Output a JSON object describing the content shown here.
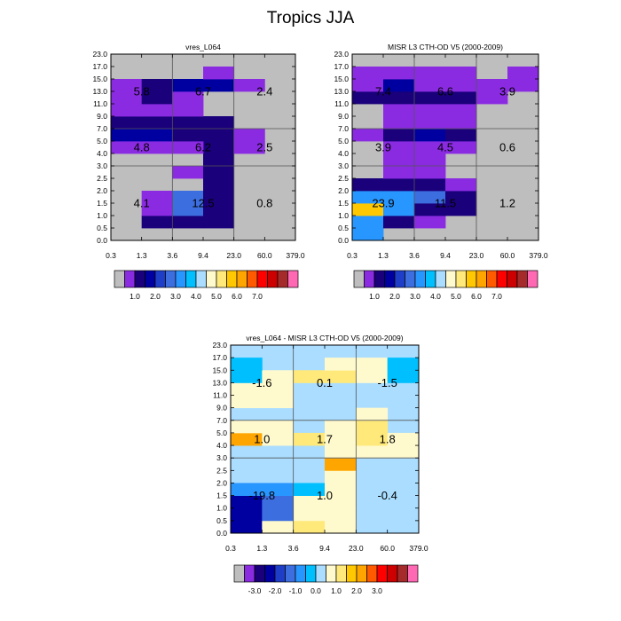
{
  "title": "Tropics JJA",
  "colors": {
    "palette_main": [
      "#bebebe",
      "#8a2be2",
      "#1a007a",
      "#0000a0",
      "#1e3ec8",
      "#3c6ee0",
      "#2896ff",
      "#00bfff",
      "#aaddff",
      "#fffacd",
      "#ffe97a",
      "#ffc800",
      "#ffa500",
      "#ff5a00",
      "#ff0000",
      "#cc0000",
      "#a52a2a",
      "#ff69b4"
    ],
    "palette_diff": [
      "#bebebe",
      "#8a2be2",
      "#1a007a",
      "#0000a0",
      "#1e3ec8",
      "#3c6ee0",
      "#2896ff",
      "#00bfff",
      "#aaddff",
      "#fffacd",
      "#ffe97a",
      "#ffc800",
      "#ffa500",
      "#ff5a00",
      "#ff0000",
      "#cc0000",
      "#a52a2a",
      "#ff69b4"
    ],
    "grey": "#bebebe",
    "violet": "#8a2be2",
    "navy": "#1a007a",
    "darkblue": "#0000a0",
    "medblue": "#1e3ec8",
    "royal": "#3c6ee0",
    "dodger": "#2896ff",
    "sky": "#00bfff",
    "lightblue": "#aaddff",
    "cream": "#fffacd",
    "yellow": "#ffe97a",
    "gold": "#ffc800",
    "orange": "#ffa500"
  },
  "chart_data": [
    {
      "type": "heatmap",
      "title": "vres_L064",
      "x_tick_labels": [
        "0.3",
        "1.3",
        "3.6",
        "9.4",
        "23.0",
        "60.0",
        "379.0"
      ],
      "y_tick_labels": [
        "0.0",
        "0.5",
        "1.0",
        "1.5",
        "2.0",
        "2.5",
        "3.0",
        "4.0",
        "5.0",
        "7.0",
        "9.0",
        "11.0",
        "13.0",
        "15.0",
        "17.0",
        "23.0"
      ],
      "x_group_boundaries": [
        2,
        4
      ],
      "y_group_boundaries": [
        6,
        9
      ],
      "background": "grey",
      "cells": [
        {
          "x": 1,
          "y": 1,
          "c": "navy"
        },
        {
          "x": 2,
          "y": 1,
          "c": "navy"
        },
        {
          "x": 3,
          "y": 1,
          "c": "navy"
        },
        {
          "x": 1,
          "y": 2,
          "c": "violet"
        },
        {
          "x": 2,
          "y": 2,
          "c": "royal"
        },
        {
          "x": 3,
          "y": 2,
          "c": "navy"
        },
        {
          "x": 1,
          "y": 3,
          "c": "violet"
        },
        {
          "x": 2,
          "y": 3,
          "c": "royal"
        },
        {
          "x": 3,
          "y": 3,
          "c": "navy"
        },
        {
          "x": 3,
          "y": 4,
          "c": "navy"
        },
        {
          "x": 2,
          "y": 5,
          "c": "violet"
        },
        {
          "x": 3,
          "y": 5,
          "c": "navy"
        },
        {
          "x": 3,
          "y": 6,
          "c": "navy"
        },
        {
          "x": 3,
          "y": 7,
          "c": "navy"
        },
        {
          "x": 0,
          "y": 7,
          "c": "violet"
        },
        {
          "x": 1,
          "y": 7,
          "c": "violet"
        },
        {
          "x": 2,
          "y": 7,
          "c": "violet"
        },
        {
          "x": 4,
          "y": 7,
          "c": "violet"
        },
        {
          "x": 0,
          "y": 8,
          "c": "darkblue"
        },
        {
          "x": 1,
          "y": 8,
          "c": "darkblue"
        },
        {
          "x": 2,
          "y": 8,
          "c": "navy"
        },
        {
          "x": 3,
          "y": 8,
          "c": "navy"
        },
        {
          "x": 4,
          "y": 8,
          "c": "violet"
        },
        {
          "x": 0,
          "y": 9,
          "c": "navy"
        },
        {
          "x": 1,
          "y": 9,
          "c": "navy"
        },
        {
          "x": 2,
          "y": 9,
          "c": "navy"
        },
        {
          "x": 3,
          "y": 9,
          "c": "navy"
        },
        {
          "x": 0,
          "y": 10,
          "c": "violet"
        },
        {
          "x": 1,
          "y": 10,
          "c": "violet"
        },
        {
          "x": 2,
          "y": 10,
          "c": "violet"
        },
        {
          "x": 0,
          "y": 11,
          "c": "violet"
        },
        {
          "x": 1,
          "y": 11,
          "c": "navy"
        },
        {
          "x": 2,
          "y": 11,
          "c": "violet"
        },
        {
          "x": 0,
          "y": 12,
          "c": "violet"
        },
        {
          "x": 1,
          "y": 12,
          "c": "navy"
        },
        {
          "x": 2,
          "y": 12,
          "c": "darkblue"
        },
        {
          "x": 3,
          "y": 12,
          "c": "darkblue"
        },
        {
          "x": 4,
          "y": 12,
          "c": "violet"
        },
        {
          "x": 3,
          "y": 13,
          "c": "violet"
        }
      ],
      "annotations": [
        {
          "gx": 0,
          "gy": 2,
          "text": "5.8"
        },
        {
          "gx": 1,
          "gy": 2,
          "text": "6.7"
        },
        {
          "gx": 2,
          "gy": 2,
          "text": "2.4"
        },
        {
          "gx": 0,
          "gy": 1,
          "text": "4.8"
        },
        {
          "gx": 1,
          "gy": 1,
          "text": "6.2"
        },
        {
          "gx": 2,
          "gy": 1,
          "text": "2.5"
        },
        {
          "gx": 0,
          "gy": 0,
          "text": "4.1"
        },
        {
          "gx": 1,
          "gy": 0,
          "text": "12.5"
        },
        {
          "gx": 2,
          "gy": 0,
          "text": "0.8"
        }
      ],
      "colorbar_labels": [
        "1.0",
        "2.0",
        "3.0",
        "4.0",
        "5.0",
        "6.0",
        "7.0"
      ]
    },
    {
      "type": "heatmap",
      "title": "MISR L3 CTH-OD V5 (2000-2009)",
      "x_tick_labels": [
        "0.3",
        "1.3",
        "3.6",
        "9.4",
        "23.0",
        "60.0",
        "379.0"
      ],
      "y_tick_labels": [
        "0.0",
        "0.5",
        "1.0",
        "1.5",
        "2.0",
        "2.5",
        "3.0",
        "4.0",
        "5.0",
        "7.0",
        "9.0",
        "11.0",
        "13.0",
        "15.0",
        "17.0",
        "23.0"
      ],
      "x_group_boundaries": [
        2,
        4
      ],
      "y_group_boundaries": [
        6,
        9
      ],
      "background": "grey",
      "cells": [
        {
          "x": 0,
          "y": 0,
          "c": "dodger"
        },
        {
          "x": 0,
          "y": 1,
          "c": "dodger"
        },
        {
          "x": 1,
          "y": 1,
          "c": "navy"
        },
        {
          "x": 2,
          "y": 1,
          "c": "violet"
        },
        {
          "x": 0,
          "y": 2,
          "c": "gold"
        },
        {
          "x": 1,
          "y": 2,
          "c": "dodger"
        },
        {
          "x": 2,
          "y": 2,
          "c": "navy"
        },
        {
          "x": 3,
          "y": 2,
          "c": "navy"
        },
        {
          "x": 0,
          "y": 3,
          "c": "dodger"
        },
        {
          "x": 1,
          "y": 3,
          "c": "dodger"
        },
        {
          "x": 2,
          "y": 3,
          "c": "royal"
        },
        {
          "x": 3,
          "y": 3,
          "c": "navy"
        },
        {
          "x": 0,
          "y": 4,
          "c": "navy"
        },
        {
          "x": 1,
          "y": 4,
          "c": "navy"
        },
        {
          "x": 2,
          "y": 4,
          "c": "navy"
        },
        {
          "x": 3,
          "y": 4,
          "c": "violet"
        },
        {
          "x": 1,
          "y": 5,
          "c": "violet"
        },
        {
          "x": 2,
          "y": 5,
          "c": "violet"
        },
        {
          "x": 1,
          "y": 6,
          "c": "violet"
        },
        {
          "x": 2,
          "y": 6,
          "c": "violet"
        },
        {
          "x": 1,
          "y": 7,
          "c": "violet"
        },
        {
          "x": 2,
          "y": 7,
          "c": "violet"
        },
        {
          "x": 3,
          "y": 7,
          "c": "violet"
        },
        {
          "x": 0,
          "y": 8,
          "c": "violet"
        },
        {
          "x": 1,
          "y": 8,
          "c": "navy"
        },
        {
          "x": 2,
          "y": 8,
          "c": "darkblue"
        },
        {
          "x": 3,
          "y": 8,
          "c": "navy"
        },
        {
          "x": 1,
          "y": 9,
          "c": "violet"
        },
        {
          "x": 2,
          "y": 9,
          "c": "violet"
        },
        {
          "x": 3,
          "y": 9,
          "c": "violet"
        },
        {
          "x": 1,
          "y": 10,
          "c": "violet"
        },
        {
          "x": 2,
          "y": 10,
          "c": "violet"
        },
        {
          "x": 3,
          "y": 10,
          "c": "violet"
        },
        {
          "x": 0,
          "y": 11,
          "c": "navy"
        },
        {
          "x": 1,
          "y": 11,
          "c": "navy"
        },
        {
          "x": 2,
          "y": 11,
          "c": "navy"
        },
        {
          "x": 3,
          "y": 11,
          "c": "navy"
        },
        {
          "x": 4,
          "y": 11,
          "c": "violet"
        },
        {
          "x": 0,
          "y": 12,
          "c": "violet"
        },
        {
          "x": 1,
          "y": 12,
          "c": "darkblue"
        },
        {
          "x": 2,
          "y": 12,
          "c": "violet"
        },
        {
          "x": 3,
          "y": 12,
          "c": "violet"
        },
        {
          "x": 4,
          "y": 12,
          "c": "violet"
        },
        {
          "x": 5,
          "y": 12,
          "c": "violet"
        },
        {
          "x": 0,
          "y": 13,
          "c": "violet"
        },
        {
          "x": 1,
          "y": 13,
          "c": "violet"
        },
        {
          "x": 2,
          "y": 13,
          "c": "violet"
        },
        {
          "x": 3,
          "y": 13,
          "c": "violet"
        },
        {
          "x": 5,
          "y": 13,
          "c": "violet"
        }
      ],
      "annotations": [
        {
          "gx": 0,
          "gy": 2,
          "text": "7.4"
        },
        {
          "gx": 1,
          "gy": 2,
          "text": "6.6"
        },
        {
          "gx": 2,
          "gy": 2,
          "text": "3.9"
        },
        {
          "gx": 0,
          "gy": 1,
          "text": "3.9"
        },
        {
          "gx": 1,
          "gy": 1,
          "text": "4.5"
        },
        {
          "gx": 2,
          "gy": 1,
          "text": "0.6"
        },
        {
          "gx": 0,
          "gy": 0,
          "text": "23.9"
        },
        {
          "gx": 1,
          "gy": 0,
          "text": "11.5"
        },
        {
          "gx": 2,
          "gy": 0,
          "text": "1.2"
        }
      ],
      "colorbar_labels": [
        "1.0",
        "2.0",
        "3.0",
        "4.0",
        "5.0",
        "6.0",
        "7.0"
      ]
    },
    {
      "type": "heatmap",
      "title": "vres_L064 - MISR L3 CTH-OD V5 (2000-2009)",
      "x_tick_labels": [
        "0.3",
        "1.3",
        "3.6",
        "9.4",
        "23.0",
        "60.0",
        "379.0"
      ],
      "y_tick_labels": [
        "0.0",
        "0.5",
        "1.0",
        "1.5",
        "2.0",
        "2.5",
        "3.0",
        "4.0",
        "5.0",
        "7.0",
        "9.0",
        "11.0",
        "13.0",
        "15.0",
        "17.0",
        "23.0"
      ],
      "x_group_boundaries": [
        2,
        4
      ],
      "y_group_boundaries": [
        6,
        9
      ],
      "background": "lightblue",
      "cells": [
        {
          "x": 0,
          "y": 0,
          "c": "darkblue"
        },
        {
          "x": 1,
          "y": 0,
          "c": "cream"
        },
        {
          "x": 2,
          "y": 0,
          "c": "yellow"
        },
        {
          "x": 3,
          "y": 0,
          "c": "cream"
        },
        {
          "x": 0,
          "y": 1,
          "c": "darkblue"
        },
        {
          "x": 1,
          "y": 1,
          "c": "royal"
        },
        {
          "x": 2,
          "y": 1,
          "c": "cream"
        },
        {
          "x": 3,
          "y": 1,
          "c": "cream"
        },
        {
          "x": 0,
          "y": 2,
          "c": "darkblue"
        },
        {
          "x": 1,
          "y": 2,
          "c": "royal"
        },
        {
          "x": 2,
          "y": 2,
          "c": "cream"
        },
        {
          "x": 3,
          "y": 2,
          "c": "cream"
        },
        {
          "x": 0,
          "y": 3,
          "c": "dodger"
        },
        {
          "x": 1,
          "y": 3,
          "c": "dodger"
        },
        {
          "x": 2,
          "y": 3,
          "c": "sky"
        },
        {
          "x": 3,
          "y": 3,
          "c": "cream"
        },
        {
          "x": 3,
          "y": 4,
          "c": "cream"
        },
        {
          "x": 3,
          "y": 5,
          "c": "orange"
        },
        {
          "x": 3,
          "y": 6,
          "c": "cream"
        },
        {
          "x": 4,
          "y": 6,
          "c": "cream"
        },
        {
          "x": 5,
          "y": 6,
          "c": "cream"
        },
        {
          "x": 0,
          "y": 7,
          "c": "orange"
        },
        {
          "x": 1,
          "y": 7,
          "c": "cream"
        },
        {
          "x": 2,
          "y": 7,
          "c": "yellow"
        },
        {
          "x": 3,
          "y": 7,
          "c": "cream"
        },
        {
          "x": 4,
          "y": 7,
          "c": "yellow"
        },
        {
          "x": 5,
          "y": 7,
          "c": "cream"
        },
        {
          "x": 0,
          "y": 8,
          "c": "cream"
        },
        {
          "x": 1,
          "y": 8,
          "c": "cream"
        },
        {
          "x": 3,
          "y": 8,
          "c": "cream"
        },
        {
          "x": 4,
          "y": 8,
          "c": "yellow"
        },
        {
          "x": 4,
          "y": 9,
          "c": "cream"
        },
        {
          "x": 0,
          "y": 10,
          "c": "cream"
        },
        {
          "x": 1,
          "y": 10,
          "c": "cream"
        },
        {
          "x": 0,
          "y": 11,
          "c": "cream"
        },
        {
          "x": 1,
          "y": 11,
          "c": "cream"
        },
        {
          "x": 0,
          "y": 12,
          "c": "sky"
        },
        {
          "x": 1,
          "y": 12,
          "c": "cream"
        },
        {
          "x": 2,
          "y": 12,
          "c": "yellow"
        },
        {
          "x": 3,
          "y": 12,
          "c": "yellow"
        },
        {
          "x": 4,
          "y": 12,
          "c": "cream"
        },
        {
          "x": 5,
          "y": 12,
          "c": "sky"
        },
        {
          "x": 0,
          "y": 13,
          "c": "sky"
        },
        {
          "x": 3,
          "y": 13,
          "c": "cream"
        },
        {
          "x": 4,
          "y": 13,
          "c": "cream"
        },
        {
          "x": 5,
          "y": 13,
          "c": "sky"
        }
      ],
      "annotations": [
        {
          "gx": 0,
          "gy": 2,
          "text": "-1.6"
        },
        {
          "gx": 1,
          "gy": 2,
          "text": "0.1"
        },
        {
          "gx": 2,
          "gy": 2,
          "text": "-1.5"
        },
        {
          "gx": 0,
          "gy": 1,
          "text": "1.0"
        },
        {
          "gx": 1,
          "gy": 1,
          "text": "1.7"
        },
        {
          "gx": 2,
          "gy": 1,
          "text": "1.8"
        },
        {
          "gx": 0,
          "gy": 0,
          "text": "-19.8"
        },
        {
          "gx": 1,
          "gy": 0,
          "text": "1.0"
        },
        {
          "gx": 2,
          "gy": 0,
          "text": "-0.4"
        }
      ],
      "colorbar_labels": [
        "-3.0",
        "-2.0",
        "-1.0",
        "0.0",
        "1.0",
        "2.0",
        "3.0"
      ]
    }
  ]
}
